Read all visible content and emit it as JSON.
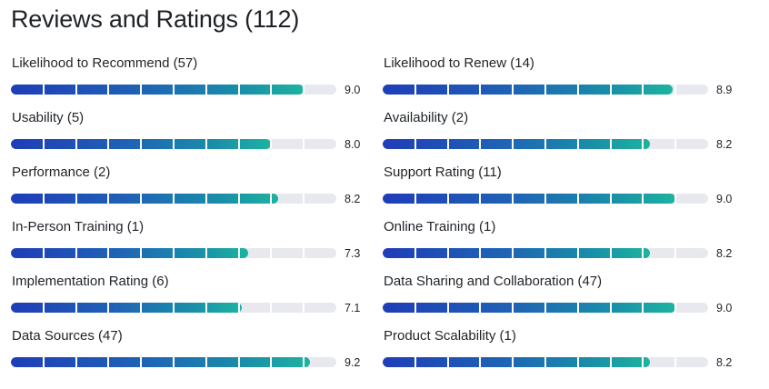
{
  "title": "Reviews and Ratings (112)",
  "colors": {
    "bar_start": "#1f3db8",
    "bar_end": "#1db3a0",
    "track": "#e8e9ee"
  },
  "left_column": [
    {
      "label": "Likelihood to Recommend (57)",
      "score": 9.0,
      "score_text": "9.0"
    },
    {
      "label": "Usability (5)",
      "score": 8.0,
      "score_text": "8.0"
    },
    {
      "label": "Performance (2)",
      "score": 8.2,
      "score_text": "8.2"
    },
    {
      "label": "In-Person Training (1)",
      "score": 7.3,
      "score_text": "7.3"
    },
    {
      "label": "Implementation Rating (6)",
      "score": 7.1,
      "score_text": "7.1"
    },
    {
      "label": "Data Sources (47)",
      "score": 9.2,
      "score_text": "9.2"
    }
  ],
  "right_column": [
    {
      "label": "Likelihood to Renew (14)",
      "score": 8.9,
      "score_text": "8.9"
    },
    {
      "label": "Availability (2)",
      "score": 8.2,
      "score_text": "8.2"
    },
    {
      "label": "Support Rating (11)",
      "score": 9.0,
      "score_text": "9.0"
    },
    {
      "label": "Online Training (1)",
      "score": 8.2,
      "score_text": "8.2"
    },
    {
      "label": "Data Sharing and Collaboration (47)",
      "score": 9.0,
      "score_text": "9.0"
    },
    {
      "label": "Product Scalability (1)",
      "score": 8.2,
      "score_text": "8.2"
    }
  ]
}
